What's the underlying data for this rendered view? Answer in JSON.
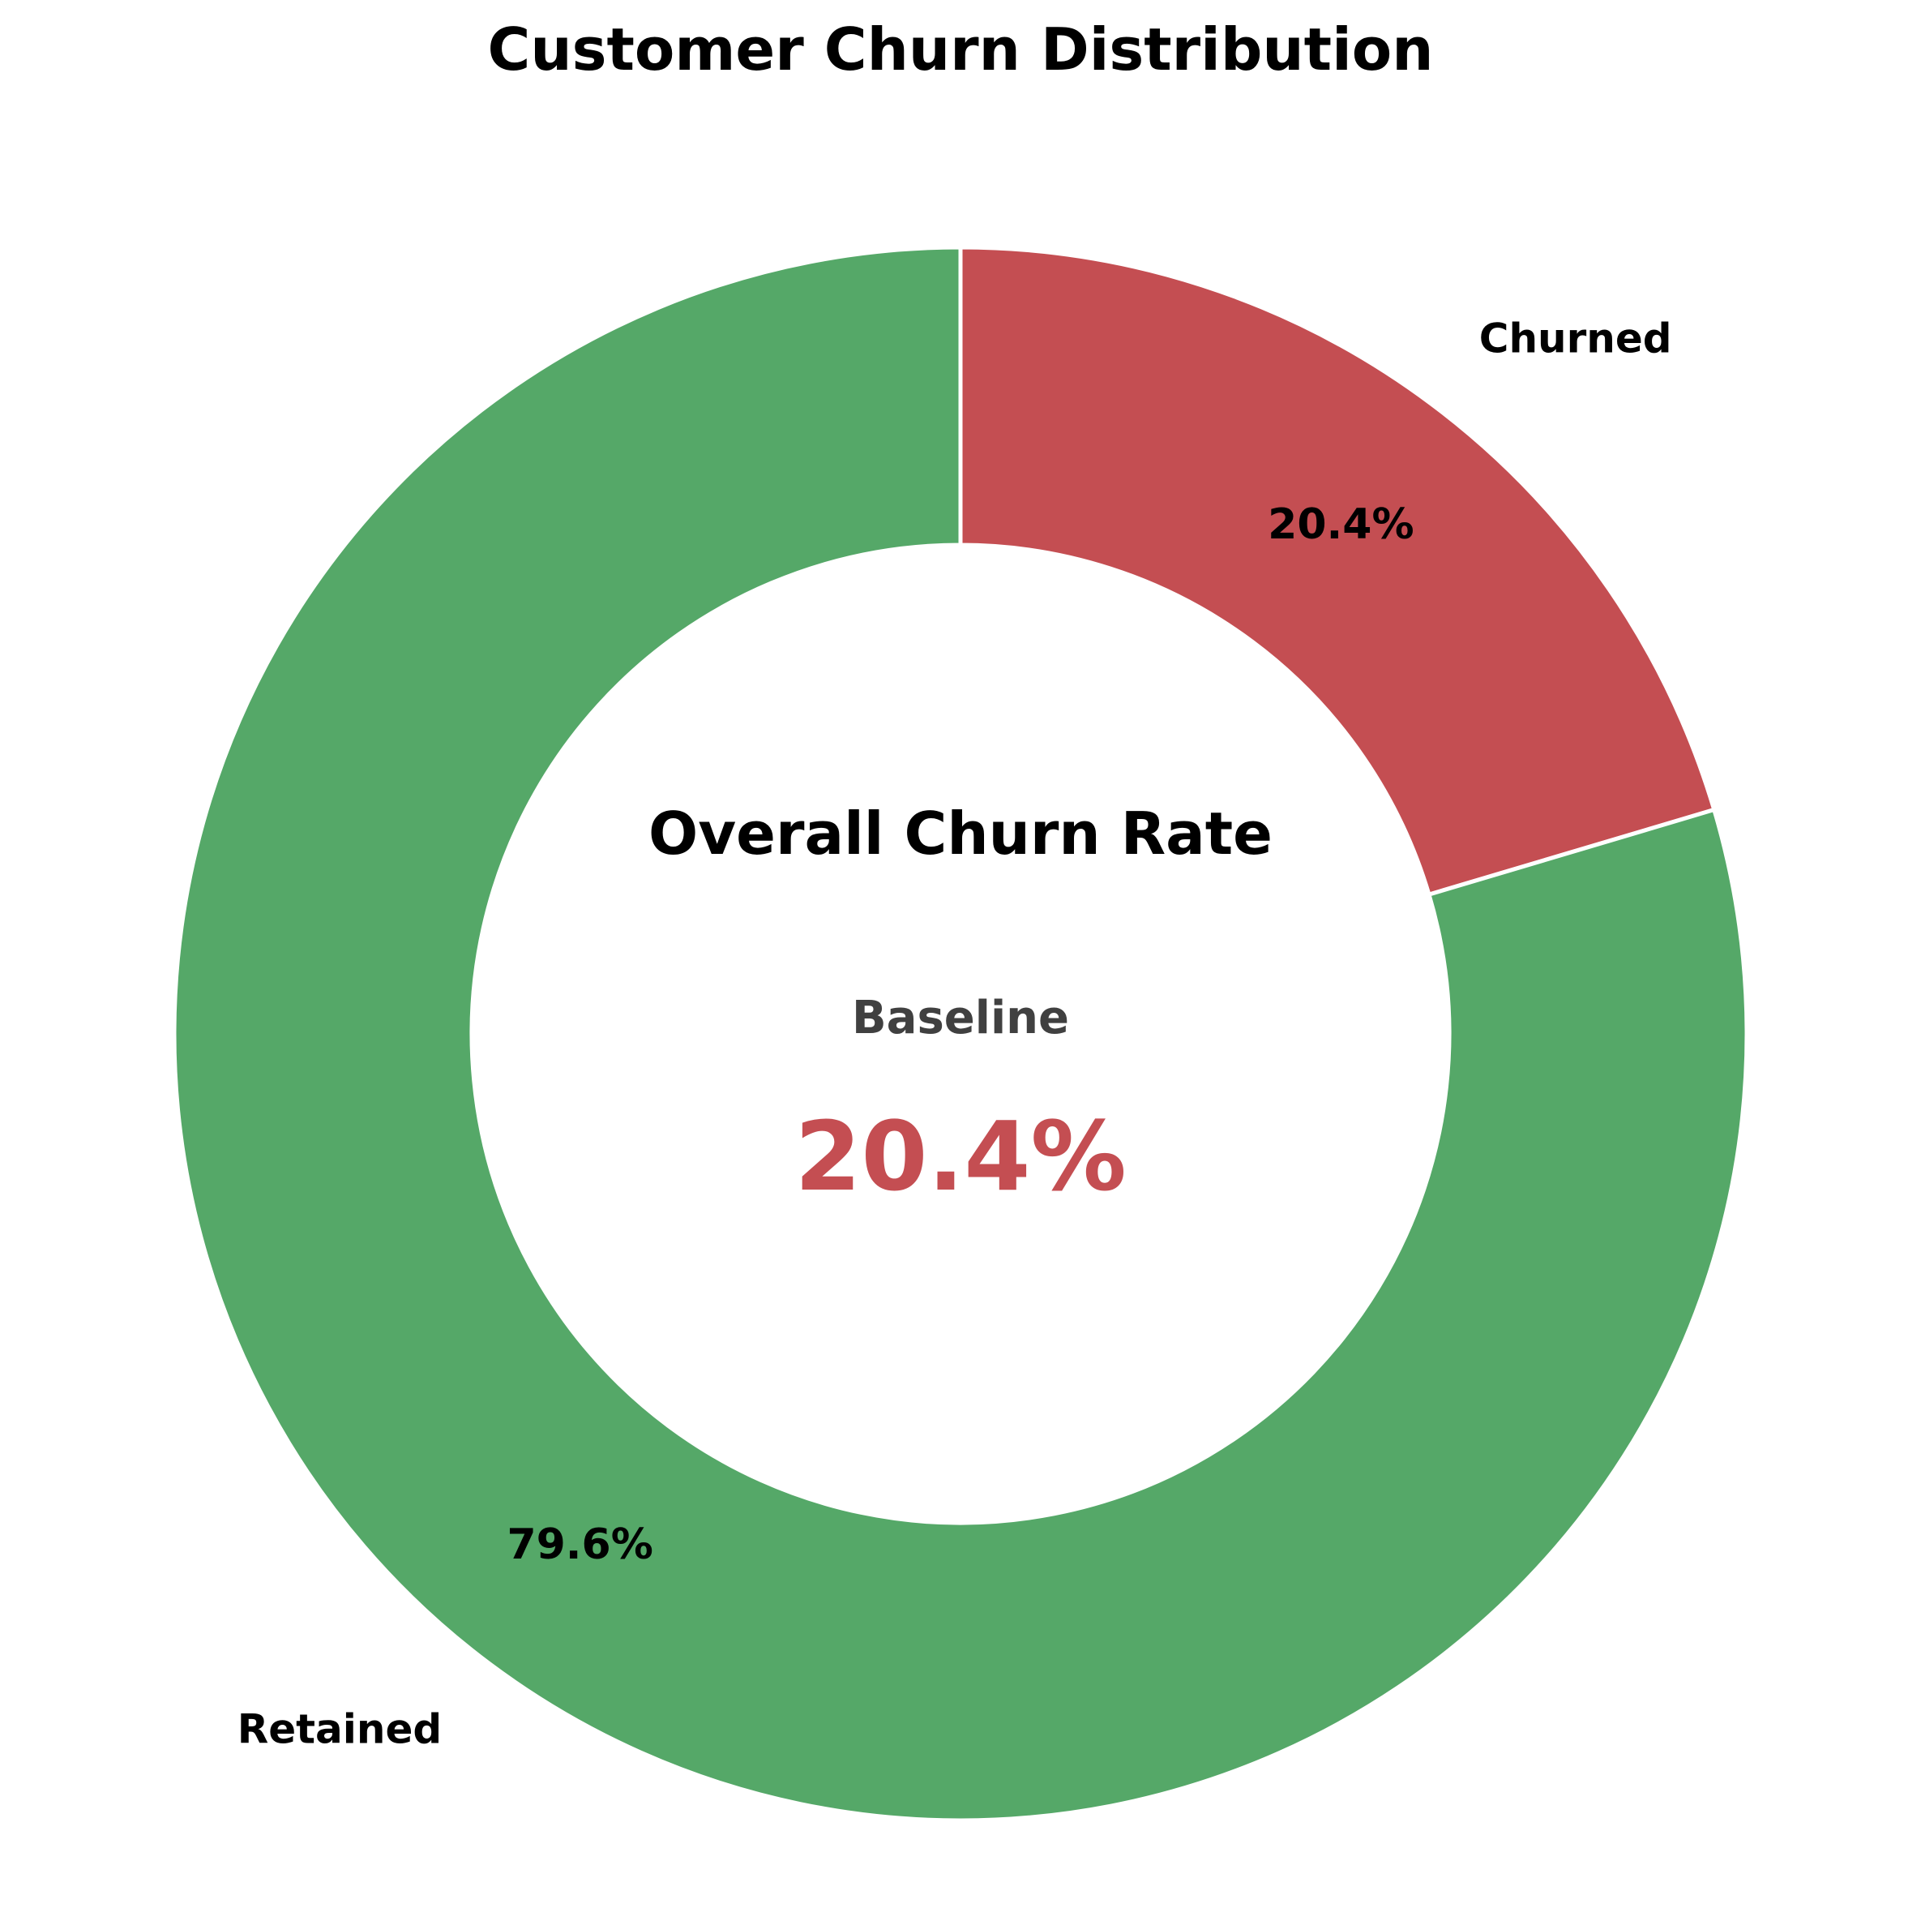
{
  "chart_data": {
    "type": "pie",
    "variant": "donut",
    "title": "Customer Churn Distribution",
    "start_angle_deg": 90,
    "direction": "clockwise",
    "categories": [
      "Churned",
      "Retained"
    ],
    "values": [
      20.4,
      79.6
    ],
    "percent_labels": [
      "20.4%",
      "79.6%"
    ],
    "colors": [
      "#C44E52",
      "#55A868"
    ],
    "edge_color": "#FFFFFF",
    "center": {
      "heading": "Overall Churn Rate",
      "subheading": "Baseline",
      "subheading_color": "#404040",
      "value": "20.4%",
      "value_color": "#C44E52"
    },
    "legend": "none",
    "grid": false
  }
}
